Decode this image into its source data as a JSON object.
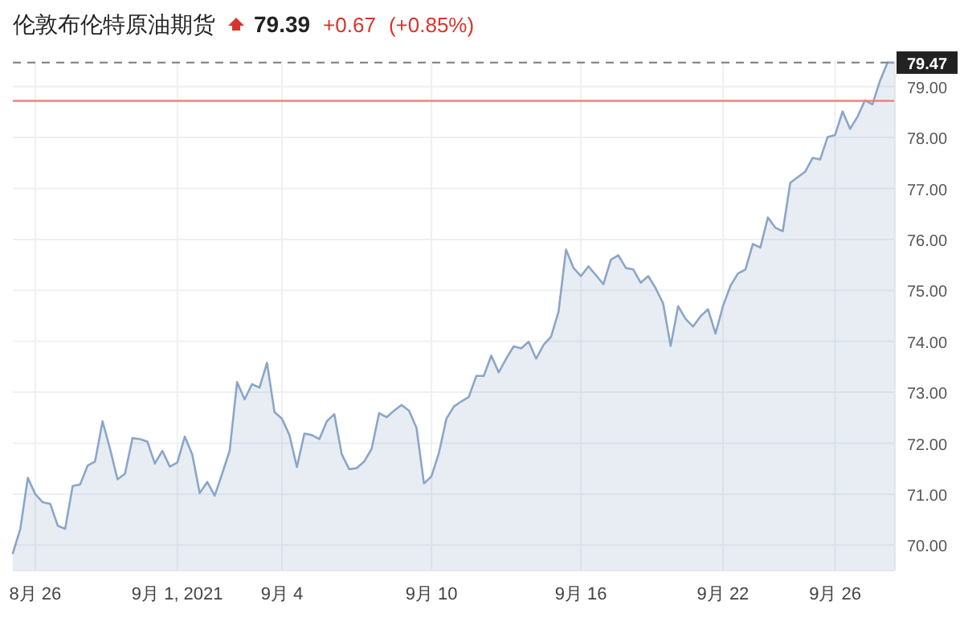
{
  "chart_data": {
    "type": "area",
    "title": "伦敦布伦特原油期货",
    "annotations": [
      "79.39",
      "+0.67",
      "(+0.85%)"
    ],
    "categories": [
      null,
      null,
      null,
      "8月 26",
      null,
      null,
      null,
      null,
      null,
      null,
      null,
      null,
      null,
      null,
      null,
      null,
      null,
      null,
      null,
      null,
      null,
      null,
      "9月 1, 2021",
      null,
      null,
      null,
      null,
      null,
      null,
      null,
      null,
      null,
      null,
      null,
      null,
      null,
      "9月 4",
      null,
      null,
      null,
      null,
      null,
      null,
      null,
      null,
      null,
      null,
      null,
      null,
      null,
      null,
      null,
      null,
      null,
      null,
      null,
      "9月 10",
      null,
      null,
      null,
      null,
      null,
      null,
      null,
      null,
      null,
      null,
      null,
      null,
      null,
      null,
      null,
      null,
      null,
      null,
      null,
      "9月 16",
      null,
      null,
      null,
      null,
      null,
      null,
      null,
      null,
      null,
      null,
      null,
      null,
      null,
      null,
      null,
      null,
      null,
      null,
      "9月 22",
      null,
      null,
      null,
      null,
      null,
      null,
      null,
      null,
      null,
      null,
      null,
      null,
      null,
      null,
      "9月 26",
      null,
      null,
      null,
      null,
      null,
      null,
      null,
      null
    ],
    "ylim": [
      69.5,
      79.5
    ],
    "yticks": [
      {
        "value": 70,
        "label": "70.00"
      },
      {
        "value": 71,
        "label": "71.00"
      },
      {
        "value": 72,
        "label": "72.00"
      },
      {
        "value": 73,
        "label": "73.00"
      },
      {
        "value": 74,
        "label": "74.00"
      },
      {
        "value": 75,
        "label": "75.00"
      },
      {
        "value": 76,
        "label": "76.00"
      },
      {
        "value": 77,
        "label": "77.00"
      },
      {
        "value": 78,
        "label": "78.00"
      },
      {
        "value": 79,
        "label": "79.00"
      }
    ],
    "grid": true,
    "ref_lines": [
      {
        "axis": "y",
        "value": 79.47,
        "label": "79.47",
        "color": "#888888",
        "line_style": "dashed"
      },
      {
        "axis": "y",
        "value": 78.72,
        "color": "#f08080",
        "line_style": "solid"
      }
    ],
    "series": [
      {
        "color": "#8aa6c8",
        "values": [
          69.84,
          70.32,
          71.32,
          71.0,
          70.84,
          70.81,
          70.38,
          70.32,
          71.16,
          71.19,
          71.56,
          71.64,
          72.43,
          71.89,
          71.29,
          71.4,
          72.1,
          72.08,
          72.03,
          71.6,
          71.85,
          71.54,
          71.62,
          72.13,
          71.78,
          71.02,
          71.24,
          70.97,
          71.4,
          71.85,
          73.2,
          72.86,
          73.16,
          73.09,
          73.58,
          72.61,
          72.48,
          72.16,
          71.53,
          72.19,
          72.16,
          72.08,
          72.43,
          72.57,
          71.78,
          71.49,
          71.51,
          71.64,
          71.89,
          72.59,
          72.51,
          72.64,
          72.75,
          72.64,
          72.3,
          71.21,
          71.35,
          71.81,
          72.48,
          72.72,
          72.82,
          72.91,
          73.32,
          73.32,
          73.72,
          73.39,
          73.66,
          73.9,
          73.86,
          73.99,
          73.66,
          73.93,
          74.09,
          74.58,
          75.8,
          75.44,
          75.28,
          75.47,
          75.3,
          75.12,
          75.6,
          75.69,
          75.44,
          75.41,
          75.15,
          75.28,
          75.04,
          74.74,
          73.91,
          74.69,
          74.44,
          74.29,
          74.49,
          74.63,
          74.15,
          74.69,
          75.09,
          75.33,
          75.41,
          75.91,
          75.84,
          76.43,
          76.23,
          76.16,
          77.11,
          77.22,
          77.33,
          77.6,
          77.57,
          78.01,
          78.05,
          78.51,
          78.17,
          78.41,
          78.73,
          78.65,
          79.11,
          79.47,
          79.47
        ]
      }
    ]
  }
}
